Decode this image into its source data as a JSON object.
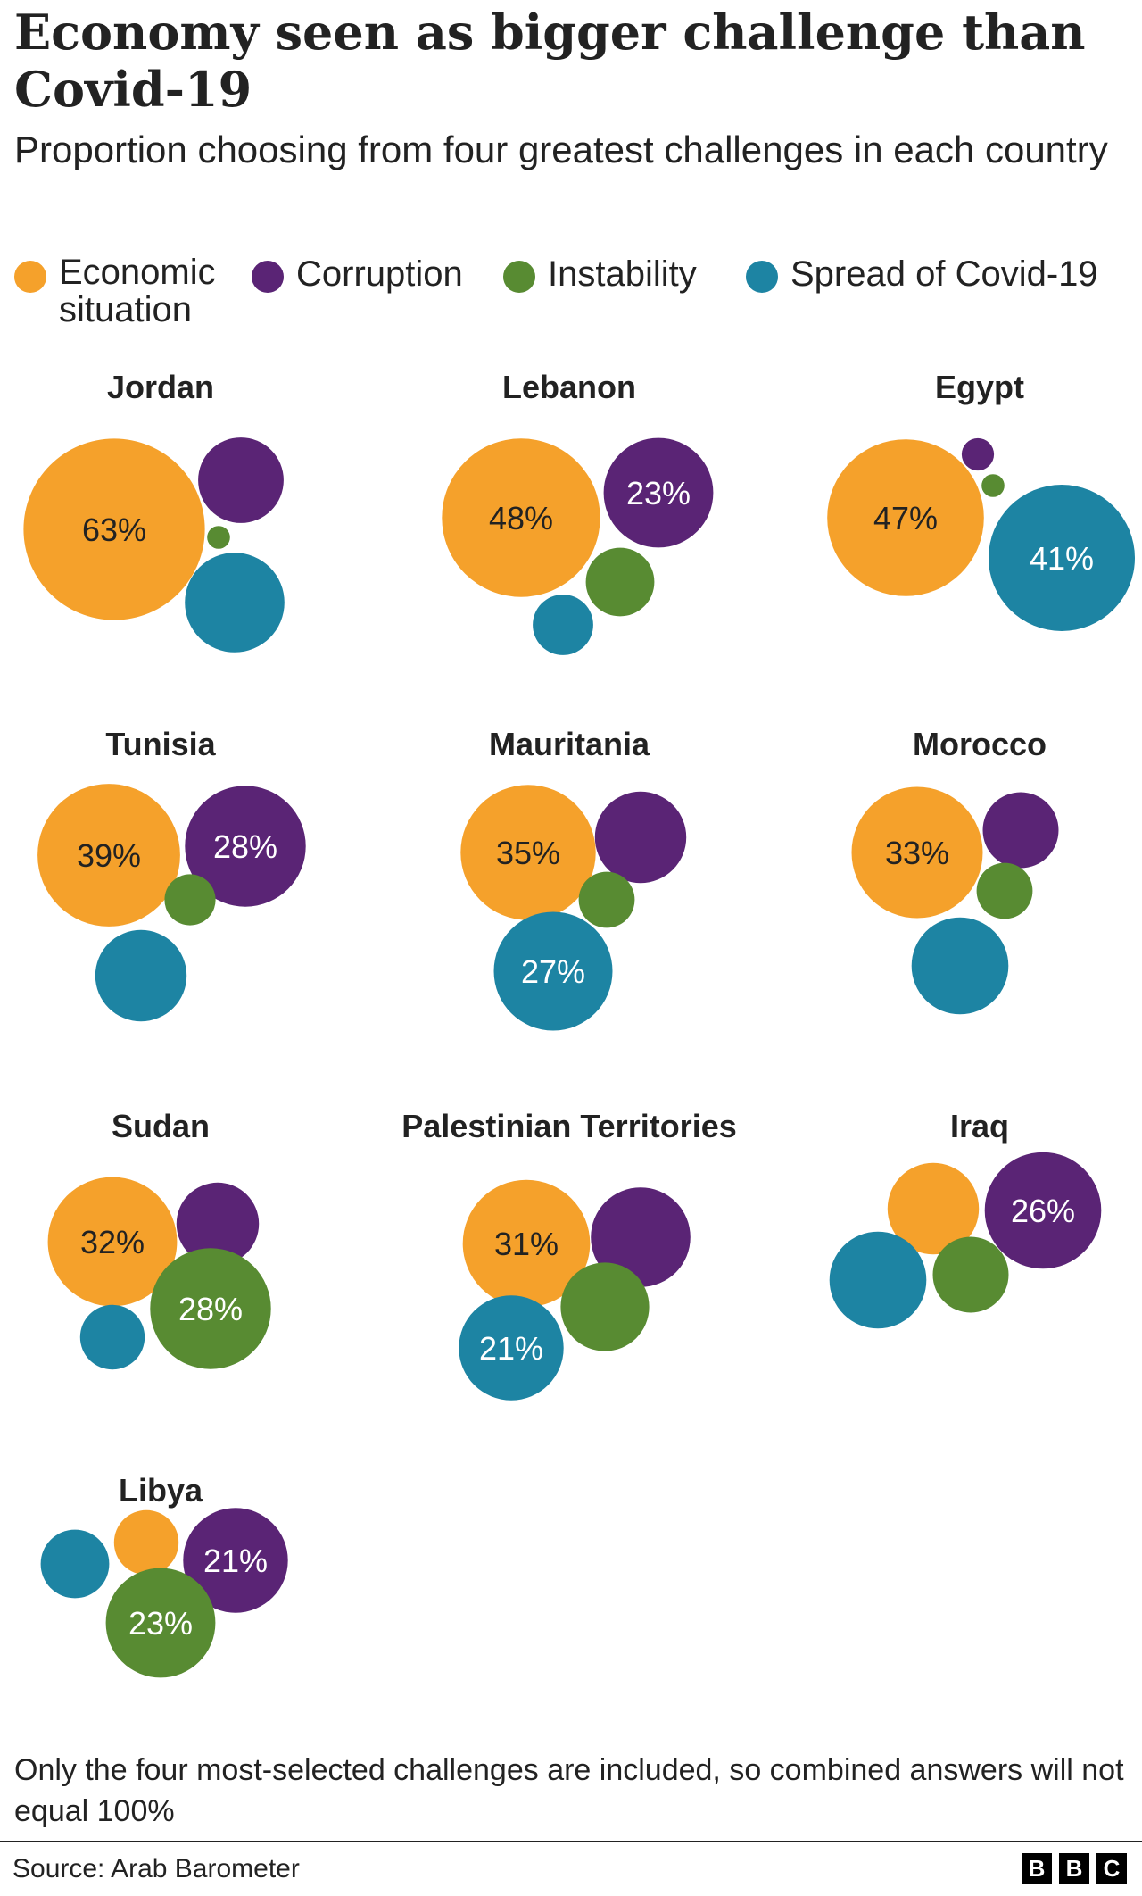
{
  "header": {
    "title": "Economy seen as bigger challenge than Covid-19",
    "subtitle": "Proportion choosing from four greatest challenges in each country"
  },
  "colors": {
    "economic": "#F5A12B",
    "corruption": "#5A2475",
    "instability": "#588B32",
    "covid": "#1D84A3"
  },
  "legend": [
    {
      "key": "economic",
      "label": "Economic situation"
    },
    {
      "key": "corruption",
      "label": "Corruption"
    },
    {
      "key": "instability",
      "label": "Instability"
    },
    {
      "key": "covid",
      "label": "Spread of Covid-19"
    }
  ],
  "chart_data": {
    "type": "bubble",
    "unit": "%",
    "categories": [
      "Economic situation",
      "Corruption",
      "Instability",
      "Spread of Covid-19"
    ],
    "countries": [
      {
        "name": "Jordan",
        "values": {
          "economic": 63,
          "corruption": 14,
          "instability": 1,
          "covid": 19
        },
        "labeled": [
          "economic"
        ]
      },
      {
        "name": "Lebanon",
        "values": {
          "economic": 48,
          "corruption": 23,
          "instability": 9,
          "covid": 7
        },
        "labeled": [
          "economic",
          "corruption"
        ]
      },
      {
        "name": "Egypt",
        "values": {
          "economic": 47,
          "corruption": 2,
          "instability": 1,
          "covid": 41
        },
        "labeled": [
          "economic",
          "covid"
        ]
      },
      {
        "name": "Tunisia",
        "values": {
          "economic": 39,
          "corruption": 28,
          "instability": 5,
          "covid": 16
        },
        "labeled": [
          "economic",
          "corruption"
        ]
      },
      {
        "name": "Mauritania",
        "values": {
          "economic": 35,
          "corruption": 16,
          "instability": 6,
          "covid": 27
        },
        "labeled": [
          "economic",
          "covid"
        ]
      },
      {
        "name": "Morocco",
        "values": {
          "economic": 33,
          "corruption": 11,
          "instability": 6,
          "covid": 18
        },
        "labeled": [
          "economic"
        ]
      },
      {
        "name": "Sudan",
        "values": {
          "economic": 32,
          "corruption": 13,
          "instability": 28,
          "covid": 8
        },
        "labeled": [
          "economic",
          "instability"
        ]
      },
      {
        "name": "Palestinian Territories",
        "values": {
          "economic": 31,
          "corruption": 19,
          "instability": 15,
          "covid": 21
        },
        "labeled": [
          "economic",
          "covid"
        ]
      },
      {
        "name": "Iraq",
        "values": {
          "economic": 16,
          "corruption": 26,
          "instability": 11,
          "covid": 18
        },
        "labeled": [
          "corruption"
        ]
      },
      {
        "name": "Libya",
        "values": {
          "economic": 8,
          "corruption": 21,
          "instability": 23,
          "covid": 9
        },
        "labeled": [
          "corruption",
          "instability"
        ]
      }
    ]
  },
  "footer": {
    "note": "Only the four most-selected challenges are included, so combined answers will not equal 100%",
    "source": "Source: Arab Barometer",
    "logo": [
      "B",
      "B",
      "C"
    ]
  }
}
